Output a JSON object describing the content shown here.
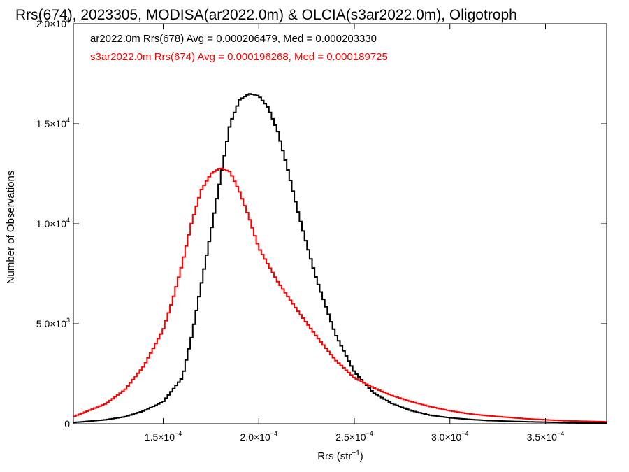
{
  "chart_data": {
    "type": "line",
    "title": "Rrs(674), 2023305, MODISA(ar2022.0m) & OLCIA(s3ar2022.0m), Oligotroph",
    "xlabel_main": "Rrs (str",
    "xlabel_sup": "−1",
    "xlabel_close": ")",
    "ylabel": "Number of Observations",
    "xlim": [
      0.000103,
      0.000382
    ],
    "ylim": [
      0,
      20000
    ],
    "xticks": [
      {
        "value": 0.00015,
        "mant": "1.5×10",
        "exp": "−4"
      },
      {
        "value": 0.0002,
        "mant": "2.0×10",
        "exp": "−4"
      },
      {
        "value": 0.00025,
        "mant": "2.5×10",
        "exp": "−4"
      },
      {
        "value": 0.0003,
        "mant": "3.0×10",
        "exp": "−4"
      },
      {
        "value": 0.00035,
        "mant": "3.5×10",
        "exp": "−4"
      }
    ],
    "yticks": [
      {
        "value": 0,
        "mant": "0",
        "exp": ""
      },
      {
        "value": 5000,
        "mant": "5.0×10",
        "exp": "3"
      },
      {
        "value": 10000,
        "mant": "1.0×10",
        "exp": "4"
      },
      {
        "value": 15000,
        "mant": "1.5×10",
        "exp": "4"
      },
      {
        "value": 20000,
        "mant": "2.0×10",
        "exp": "4"
      }
    ],
    "legend": [
      {
        "text": "ar2022.0m Rrs(678) Avg = 0.000206479, Med = 0.000203330",
        "color": "#000000"
      },
      {
        "text": "s3ar2022.0m Rrs(674) Avg = 0.000196268, Med = 0.000189725",
        "color": "#ff0000"
      }
    ],
    "series": [
      {
        "color": "#000000",
        "x": [
          0.000103,
          0.00012,
          0.00013,
          0.00014,
          0.00015,
          0.00016,
          0.000165,
          0.00017,
          0.000175,
          0.00018,
          0.000185,
          0.00019,
          0.000195,
          0.0002,
          0.000205,
          0.00021,
          0.000215,
          0.00022,
          0.000225,
          0.00023,
          0.00024,
          0.00025,
          0.00026,
          0.00027,
          0.00028,
          0.00029,
          0.0003,
          0.00031,
          0.00032,
          0.00034,
          0.00036,
          0.000382
        ],
        "values": [
          60,
          200,
          350,
          650,
          1100,
          2300,
          4400,
          7000,
          9600,
          12300,
          15000,
          16200,
          16500,
          16400,
          15800,
          14600,
          12800,
          10800,
          9000,
          7300,
          4500,
          2600,
          1550,
          1000,
          650,
          420,
          300,
          220,
          160,
          100,
          60,
          40
        ]
      },
      {
        "color": "#ff0000",
        "x": [
          0.000103,
          0.00012,
          0.00013,
          0.00014,
          0.00015,
          0.000155,
          0.00016,
          0.000165,
          0.00017,
          0.000175,
          0.00018,
          0.000185,
          0.00019,
          0.000195,
          0.0002,
          0.00021,
          0.00022,
          0.00023,
          0.00024,
          0.00025,
          0.00026,
          0.00027,
          0.00028,
          0.00029,
          0.0003,
          0.00031,
          0.00032,
          0.00034,
          0.00036,
          0.000382
        ],
        "values": [
          350,
          1000,
          1700,
          2900,
          4700,
          6200,
          8000,
          10100,
          11700,
          12500,
          12800,
          12600,
          11600,
          10300,
          8800,
          7100,
          5700,
          4400,
          3200,
          2300,
          1800,
          1400,
          1100,
          850,
          650,
          500,
          400,
          250,
          150,
          100
        ]
      }
    ]
  }
}
